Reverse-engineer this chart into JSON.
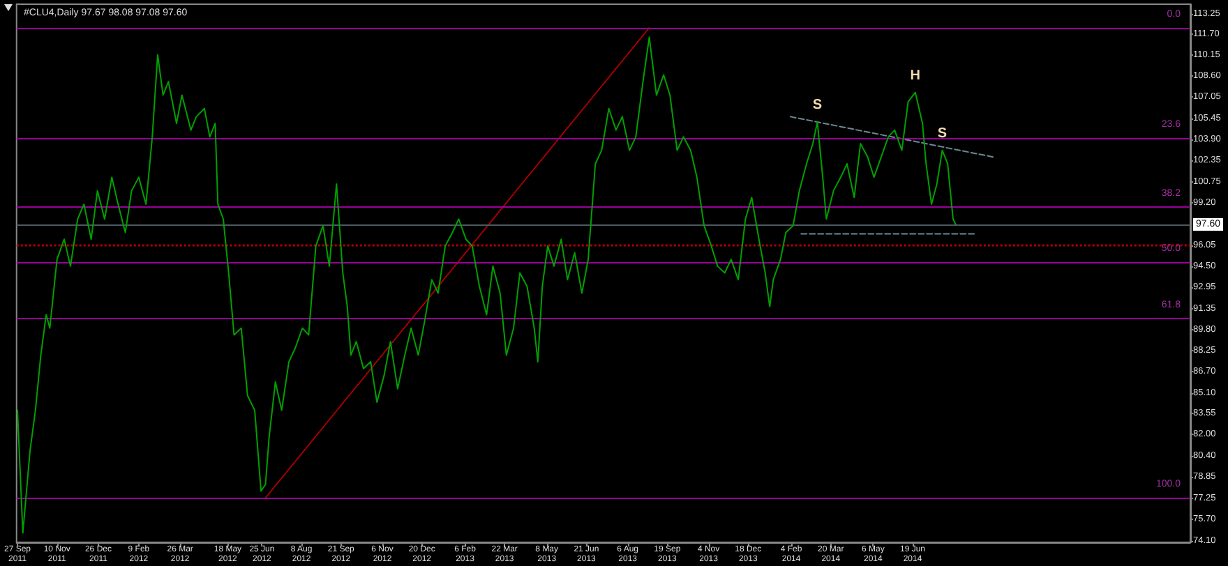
{
  "chart_data": {
    "type": "line",
    "title": "#CLU4,Daily 97.67 98.08 97.08 97.60",
    "marker": "none",
    "series": [
      {
        "color": "#00a000",
        "line_style": "solid",
        "x": [
          "2011-09-27",
          "2011-10-03",
          "2011-10-11",
          "2011-10-17",
          "2011-10-23",
          "2011-10-29",
          "2011-11-02",
          "2011-11-10",
          "2011-11-18",
          "2011-11-25",
          "2011-12-03",
          "2011-12-10",
          "2011-12-18",
          "2011-12-25",
          "2012-01-02",
          "2012-01-10",
          "2012-01-17",
          "2012-01-25",
          "2012-02-01",
          "2012-02-09",
          "2012-02-17",
          "2012-02-24",
          "2012-03-01",
          "2012-03-07",
          "2012-03-13",
          "2012-03-22",
          "2012-03-28",
          "2012-04-07",
          "2012-04-13",
          "2012-04-22",
          "2012-04-28",
          "2012-05-04",
          "2012-05-07",
          "2012-05-13",
          "2012-05-19",
          "2012-05-25",
          "2012-06-02",
          "2012-06-09",
          "2012-06-17",
          "2012-06-24",
          "2012-06-29",
          "2012-07-03",
          "2012-07-10",
          "2012-07-17",
          "2012-07-25",
          "2012-08-01",
          "2012-08-09",
          "2012-08-16",
          "2012-08-24",
          "2012-09-01",
          "2012-09-08",
          "2012-09-16",
          "2012-09-23",
          "2012-09-28",
          "2012-10-02",
          "2012-10-08",
          "2012-10-16",
          "2012-10-24",
          "2012-10-31",
          "2012-11-08",
          "2012-11-15",
          "2012-11-23",
          "2012-12-01",
          "2012-12-08",
          "2012-12-16",
          "2012-12-23",
          "2012-12-31",
          "2013-01-07",
          "2013-01-15",
          "2013-01-23",
          "2013-01-30",
          "2013-02-07",
          "2013-02-14",
          "2013-02-22",
          "2013-03-02",
          "2013-03-09",
          "2013-03-17",
          "2013-03-24",
          "2013-04-01",
          "2013-04-08",
          "2013-04-16",
          "2013-04-24",
          "2013-04-28",
          "2013-05-03",
          "2013-05-09",
          "2013-05-16",
          "2013-05-24",
          "2013-05-31",
          "2013-06-08",
          "2013-06-16",
          "2013-06-23",
          "2013-07-01",
          "2013-07-08",
          "2013-07-16",
          "2013-07-24",
          "2013-07-31",
          "2013-08-08",
          "2013-08-15",
          "2013-08-23",
          "2013-08-30",
          "2013-09-07",
          "2013-09-15",
          "2013-09-22",
          "2013-09-30",
          "2013-10-07",
          "2013-10-15",
          "2013-10-22",
          "2013-10-30",
          "2013-11-07",
          "2013-11-14",
          "2013-11-22",
          "2013-11-29",
          "2013-12-07",
          "2013-12-15",
          "2013-12-22",
          "2013-12-30",
          "2014-01-06",
          "2014-01-11",
          "2014-01-15",
          "2014-01-23",
          "2014-01-29",
          "2014-02-06",
          "2014-02-13",
          "2014-02-21",
          "2014-02-28",
          "2014-03-05",
          "2014-03-11",
          "2014-03-15",
          "2014-03-23",
          "2014-03-31",
          "2014-04-07",
          "2014-04-15",
          "2014-04-22",
          "2014-04-30",
          "2014-05-07",
          "2014-05-15",
          "2014-05-23",
          "2014-05-30",
          "2014-06-07",
          "2014-06-14",
          "2014-06-22",
          "2014-06-30",
          "2014-07-04",
          "2014-07-10",
          "2014-07-16",
          "2014-07-22",
          "2014-07-28",
          "2014-08-03",
          "2014-08-06"
        ],
        "values": [
          83.8,
          74.7,
          80.8,
          83.8,
          87.9,
          90.9,
          89.9,
          95.0,
          96.5,
          94.5,
          98.0,
          99.1,
          96.5,
          100.1,
          98.0,
          101.1,
          99.1,
          97.0,
          100.1,
          101.1,
          99.1,
          104.1,
          110.2,
          107.2,
          108.2,
          105.1,
          107.2,
          104.6,
          105.6,
          106.2,
          104.1,
          105.1,
          99.1,
          98.0,
          94.0,
          89.4,
          89.9,
          84.9,
          83.8,
          77.8,
          78.3,
          81.8,
          85.9,
          83.8,
          87.4,
          88.4,
          89.9,
          89.4,
          96.0,
          97.5,
          94.5,
          100.6,
          94.0,
          91.5,
          87.9,
          88.9,
          86.9,
          87.4,
          84.4,
          86.4,
          88.9,
          85.4,
          87.9,
          89.9,
          87.9,
          90.4,
          93.5,
          92.5,
          96.0,
          97.0,
          98.0,
          96.5,
          96.0,
          93.0,
          90.9,
          94.5,
          92.5,
          87.9,
          89.9,
          94.0,
          93.0,
          89.9,
          87.4,
          93.0,
          96.0,
          94.5,
          96.5,
          93.5,
          95.5,
          92.5,
          95.0,
          102.1,
          103.1,
          106.2,
          104.6,
          105.6,
          103.1,
          104.1,
          108.2,
          111.5,
          107.2,
          108.7,
          107.2,
          103.1,
          104.1,
          103.1,
          101.1,
          97.5,
          96.0,
          94.5,
          94.0,
          95.0,
          93.5,
          98.0,
          99.6,
          96.5,
          94.0,
          91.5,
          93.5,
          95.0,
          97.0,
          97.5,
          100.1,
          102.1,
          103.6,
          105.2,
          101.1,
          98.0,
          100.1,
          101.1,
          102.1,
          99.6,
          103.6,
          102.6,
          101.1,
          102.6,
          104.1,
          104.6,
          103.1,
          106.7,
          107.4,
          105.1,
          102.1,
          99.1,
          100.6,
          103.1,
          102.1,
          98.0,
          97.6
        ]
      },
      {
        "color": "#b00000",
        "line_style": "dotted",
        "x": [
          "2012-06-29",
          "2013-08-30"
        ],
        "values": [
          77.3,
          112.2
        ]
      },
      {
        "color": "#6a8a96",
        "line_style": "dashed",
        "x": [
          "2014-02-03",
          "2014-09-17"
        ],
        "values": [
          105.6,
          102.6
        ]
      },
      {
        "color": "#6a8a96",
        "line_style": "dashed",
        "x": [
          "2014-02-15",
          "2014-08-29"
        ],
        "values": [
          96.9,
          96.9
        ]
      }
    ],
    "xlim": [
      "2011-09-26",
      "2015-04-24"
    ],
    "xticks": [
      {
        "value": "2011-09-27",
        "label": "27 Sep 2011"
      },
      {
        "value": "2011-11-10",
        "label": "10 Nov 2011"
      },
      {
        "value": "2011-12-26",
        "label": "26 Dec 2011"
      },
      {
        "value": "2012-02-09",
        "label": "9 Feb 2012"
      },
      {
        "value": "2012-03-26",
        "label": "26 Mar 2012"
      },
      {
        "value": "2012-05-18",
        "label": "18 May 2012"
      },
      {
        "value": "2012-06-25",
        "label": "25 Jun 2012"
      },
      {
        "value": "2012-08-08",
        "label": "8 Aug 2012"
      },
      {
        "value": "2012-09-21",
        "label": "21 Sep 2012"
      },
      {
        "value": "2012-11-06",
        "label": "6 Nov 2012"
      },
      {
        "value": "2012-12-20",
        "label": "20 Dec 2012"
      },
      {
        "value": "2013-02-06",
        "label": "6 Feb 2013"
      },
      {
        "value": "2013-03-22",
        "label": "22 Mar 2013"
      },
      {
        "value": "2013-05-08",
        "label": "8 May 2013"
      },
      {
        "value": "2013-06-21",
        "label": "21 Jun 2013"
      },
      {
        "value": "2013-08-06",
        "label": "6 Aug 2013"
      },
      {
        "value": "2013-09-19",
        "label": "19 Sep 2013"
      },
      {
        "value": "2013-11-04",
        "label": "4 Nov 2013"
      },
      {
        "value": "2013-12-18",
        "label": "18 Dec 2013"
      },
      {
        "value": "2014-02-04",
        "label": "4 Feb 2014"
      },
      {
        "value": "2014-03-20",
        "label": "20 Mar 2014"
      },
      {
        "value": "2014-05-06",
        "label": "6 May 2014"
      },
      {
        "value": "2014-06-19",
        "label": "19 Jun 2014"
      }
    ],
    "ylim": [
      74.0,
      113.95
    ],
    "yticks": [
      113.25,
      {
        "value": 111.7,
        "label": "111.70"
      },
      110.15,
      {
        "value": 108.6,
        "label": "108.60"
      },
      107.05,
      105.45,
      {
        "value": 103.9,
        "label": "103.90"
      },
      102.35,
      100.75,
      {
        "value": 99.2,
        "label": "99.20"
      },
      96.05,
      {
        "value": 94.5,
        "label": "94.50"
      },
      92.95,
      91.35,
      {
        "value": 89.8,
        "label": "89.80"
      },
      88.25,
      {
        "value": 86.7,
        "label": "86.70"
      },
      {
        "value": 85.1,
        "label": "85.10"
      },
      83.55,
      {
        "value": 82,
        "label": "82.00"
      },
      {
        "value": 80.4,
        "label": "80.40"
      },
      78.85,
      77.25,
      {
        "value": 75.7,
        "label": "75.70"
      },
      {
        "value": 74.1,
        "label": "74.10"
      }
    ],
    "ref_lines": [
      {
        "axis": "y",
        "value": 112.2,
        "color": "#990099"
      },
      {
        "axis": "y",
        "value": 104.0,
        "color": "#990099"
      },
      {
        "axis": "y",
        "value": 98.9,
        "color": "#990099"
      },
      {
        "axis": "y",
        "value": 94.8,
        "color": "#990099"
      },
      {
        "axis": "y",
        "value": 90.6,
        "color": "#990099"
      },
      {
        "axis": "y",
        "value": 77.3,
        "color": "#990099"
      },
      {
        "axis": "y",
        "value": 97.6,
        "label": "97.60",
        "color": "#4a5a60"
      },
      {
        "axis": "y",
        "value": 96.05,
        "color": "#b00000",
        "line_style": "dotted"
      }
    ],
    "annotations": [
      {
        "text": "S",
        "x": "2014-03-05",
        "y": 105.2
      },
      {
        "text": "H",
        "x": "2014-06-22",
        "y": 107.4
      },
      {
        "text": "S",
        "x": "2014-07-22",
        "y": 103.1
      },
      {
        "text": "0.0",
        "y": 112.2
      },
      {
        "text": "23.6",
        "y": 104.0
      },
      {
        "text": "38.2",
        "y": 98.9
      },
      {
        "text": "50.0",
        "y": 94.8
      },
      {
        "text": "61.8",
        "y": 90.6
      },
      {
        "text": "100.0",
        "y": 77.3
      }
    ]
  }
}
